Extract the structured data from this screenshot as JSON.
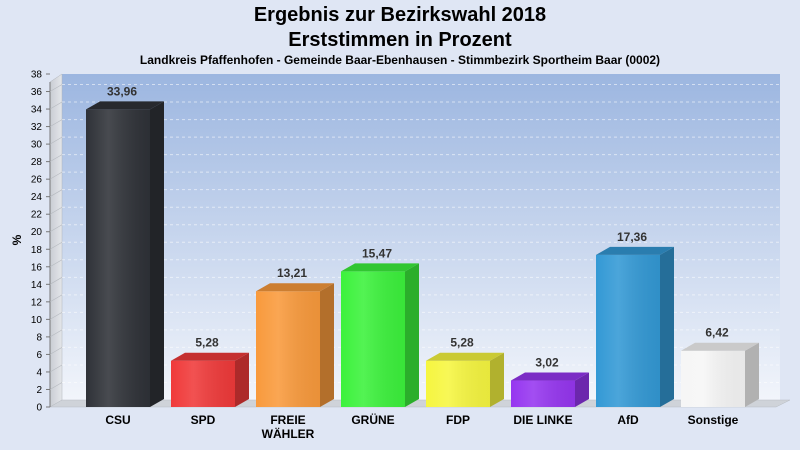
{
  "chart_data": {
    "type": "bar",
    "title": "Ergebnis zur Bezirkswahl 2018",
    "subtitle": "Erststimmen in Prozent",
    "description": "Landkreis Pfaffenhofen - Gemeinde Baar-Ebenhausen - Stimmbezirk Sportheim Baar (0002)",
    "ylabel": "%",
    "xlabel": "",
    "ylim": [
      0,
      38
    ],
    "yticks": [
      "0",
      "2",
      "4",
      "6",
      "8",
      "10",
      "12",
      "14",
      "16",
      "18",
      "20",
      "22",
      "24",
      "26",
      "28",
      "30",
      "32",
      "34",
      "36",
      "38"
    ],
    "grid": true,
    "categories": [
      "CSU",
      "SPD",
      "FREIE WÄHLER",
      "GRÜNE",
      "FDP",
      "DIE LINKE",
      "AfD",
      "Sonstige"
    ],
    "category_lines": [
      [
        "CSU"
      ],
      [
        "SPD"
      ],
      [
        "FREIE",
        "WÄHLER"
      ],
      [
        "GRÜNE"
      ],
      [
        "FDP"
      ],
      [
        "DIE LINKE"
      ],
      [
        "AfD"
      ],
      [
        "Sonstige"
      ]
    ],
    "values": [
      33.96,
      5.28,
      13.21,
      15.47,
      5.28,
      3.02,
      17.36,
      6.42
    ],
    "value_labels": [
      "33,96",
      "5,28",
      "13,21",
      "15,47",
      "5,28",
      "3,02",
      "17,36",
      "6,42"
    ],
    "colors": [
      "#2f3238",
      "#f03a3a",
      "#f99a3c",
      "#3cf23c",
      "#f6f640",
      "#9636f0",
      "#3399d5",
      "#f6f6f6"
    ]
  }
}
